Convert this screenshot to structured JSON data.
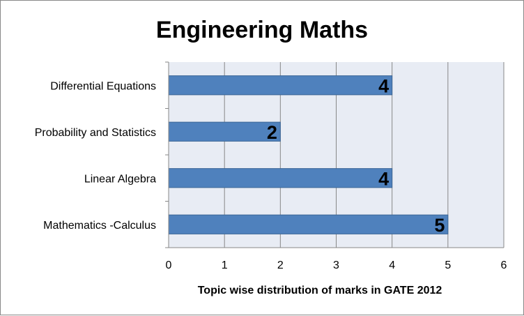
{
  "chart_data": {
    "type": "bar",
    "orientation": "horizontal",
    "title": "Engineering Maths",
    "xlabel": "Topic wise distribution of marks in GATE 2012",
    "ylabel": "",
    "categories": [
      "Differential Equations",
      "Probability and Statistics",
      "Linear Algebra",
      "Mathematics -Calculus"
    ],
    "values": [
      4,
      2,
      4,
      5
    ],
    "data_labels": [
      "4",
      "2",
      "4",
      "5"
    ],
    "xlim": [
      0,
      6
    ],
    "x_ticks": [
      "0",
      "1",
      "2",
      "3",
      "4",
      "5",
      "6"
    ],
    "grid": "vertical major gridlines",
    "legend": "none",
    "colors": {
      "bar_fill": "#4f81bd",
      "bar_stroke": "#3a6596",
      "plot_background": "#e8ecf4",
      "gridline": "#878787"
    }
  }
}
